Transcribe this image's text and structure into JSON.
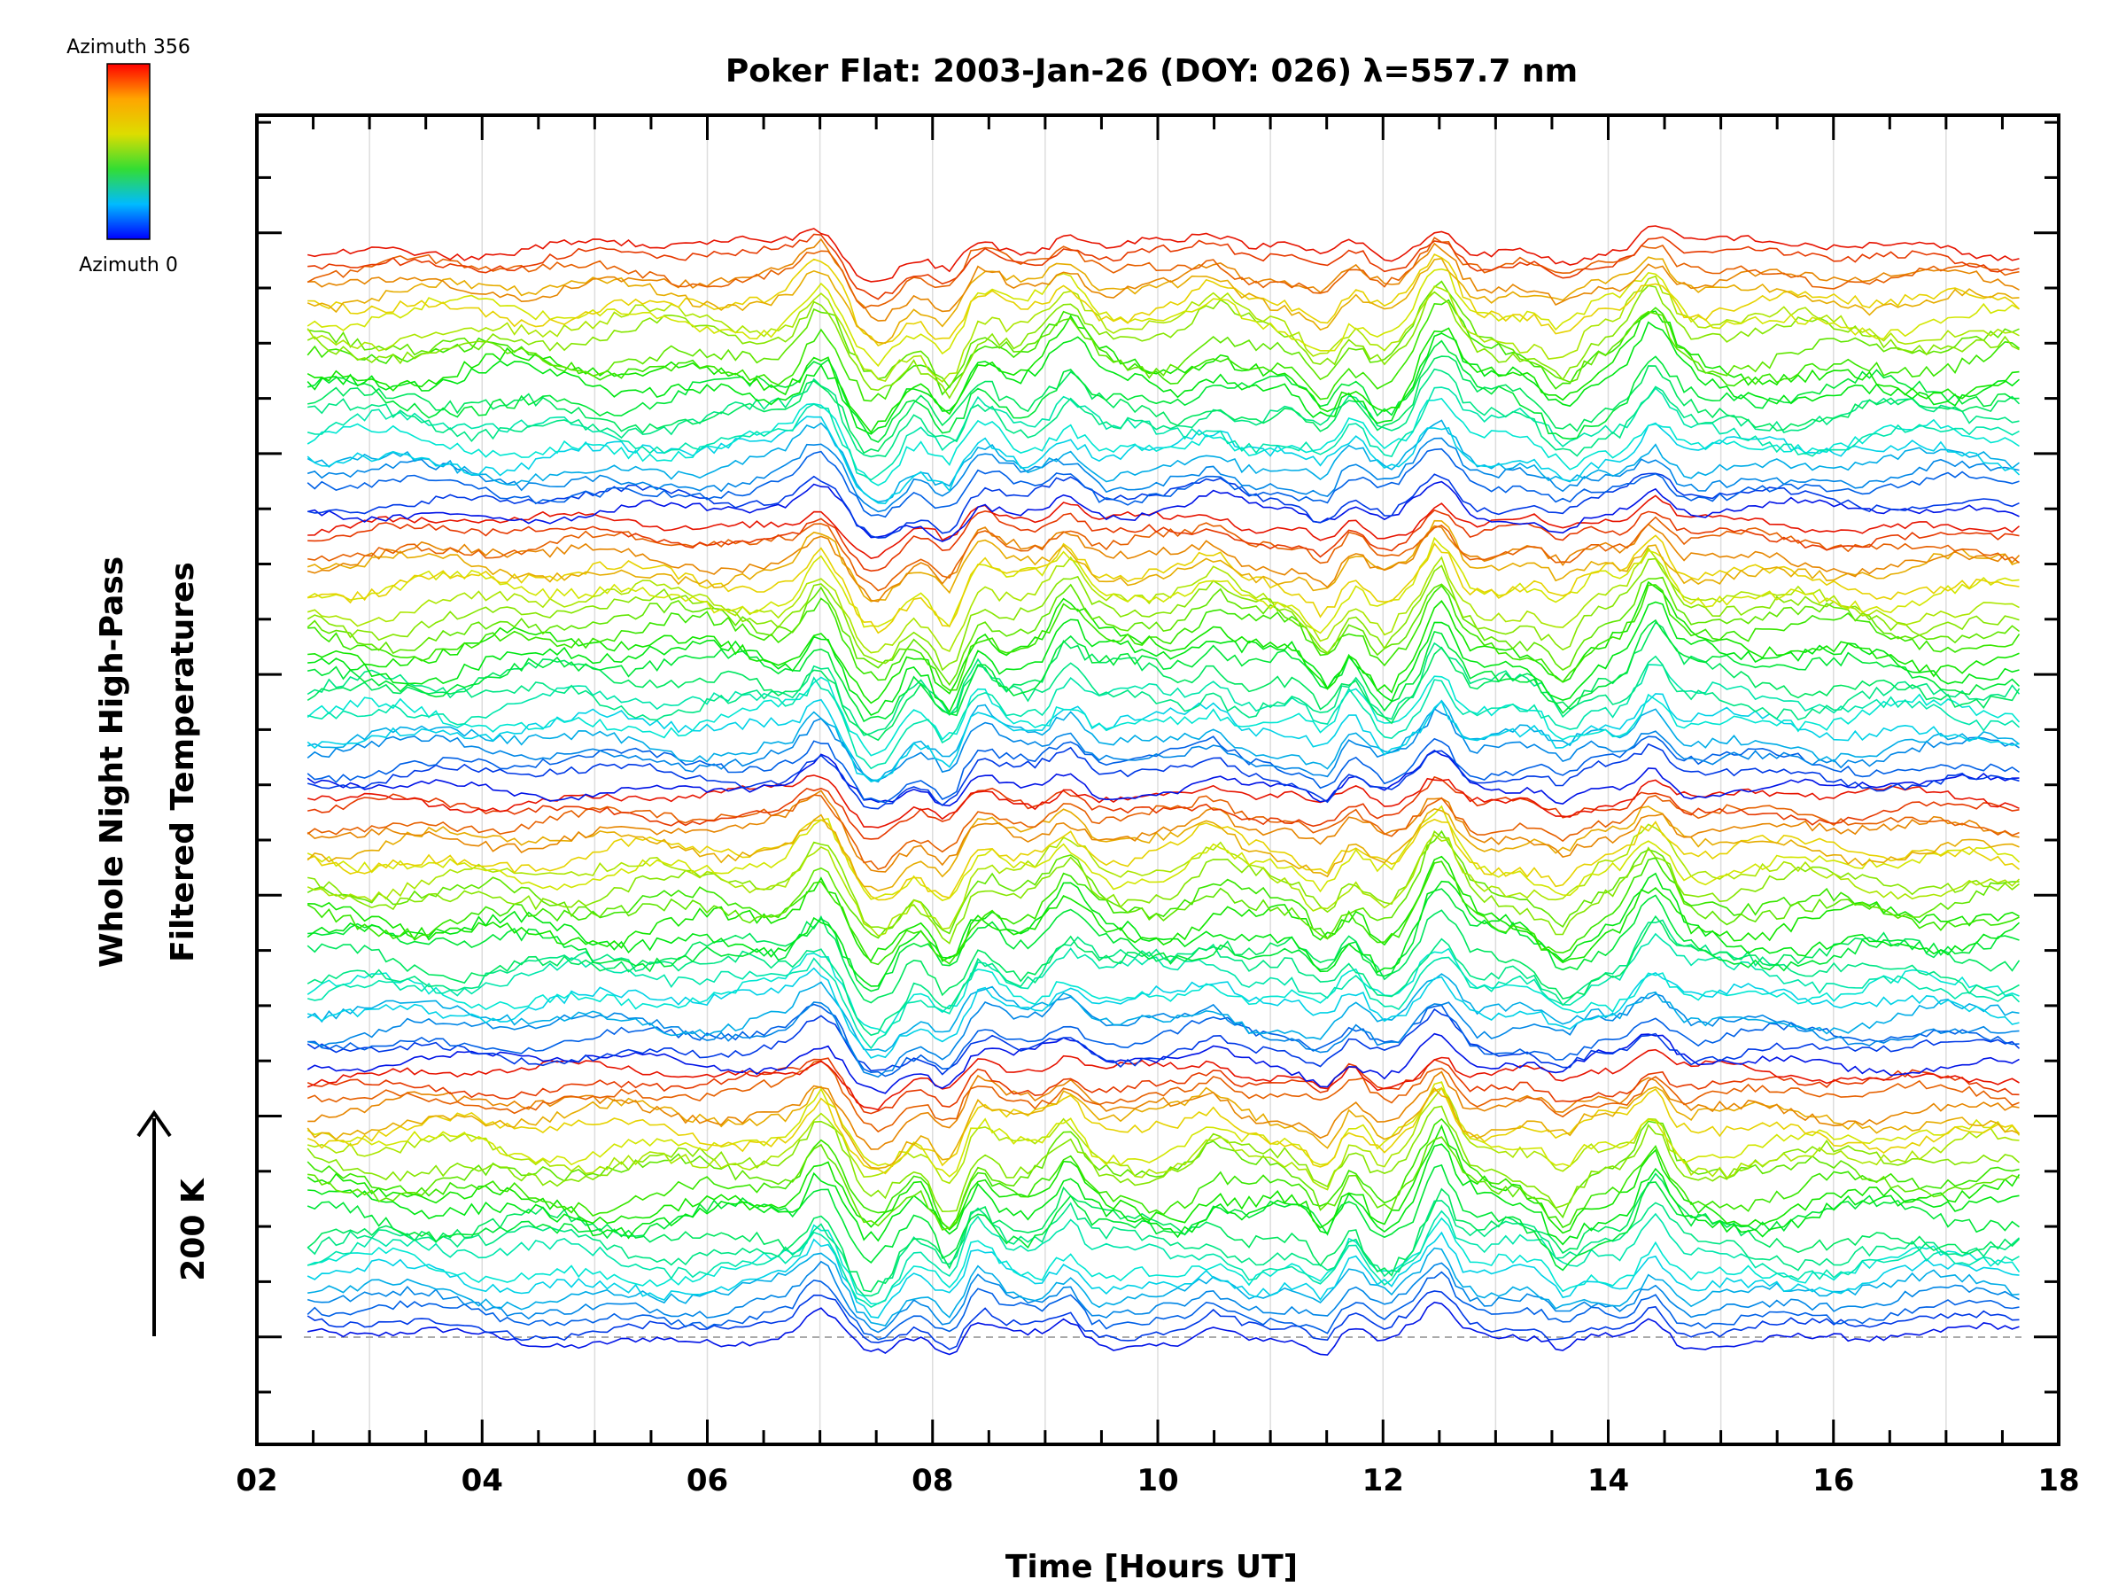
{
  "chart_data": {
    "type": "line",
    "title": "Poker Flat: 2003-Jan-26 (DOY: 026) λ=557.7 nm",
    "xlabel": "Time [Hours UT]",
    "ylabel_line1": "Whole Night High-Pass",
    "ylabel_line2": "Filtered Temperatures",
    "scale_bar_label": "200 K",
    "xlim": [
      2,
      18
    ],
    "x_tick_labels": [
      "02",
      "04",
      "06",
      "08",
      "10",
      "12",
      "14",
      "16",
      "18"
    ],
    "x_start": 2.45,
    "x_end": 17.65,
    "grid": "vertical lines at each hour",
    "legend": {
      "type": "colorbar",
      "placement": "top-left",
      "top_label": "Azimuth 356",
      "bottom_label": "Azimuth 0",
      "colors": [
        "#ff0000",
        "#ffa500",
        "#dddd00",
        "#33dd33",
        "#00bbff",
        "#0000ff"
      ]
    },
    "series_count": 96,
    "series_description": "Stacked high-pass filtered temperature traces, color-coded by azimuth (0-356), each vertically offset; major common peaks near 07.0, 08.1, 09.2, 12.5 and 14.4 UT",
    "common_features": [
      {
        "x": 7.0,
        "amplitude": 1.0
      },
      {
        "x": 7.4,
        "amplitude": -0.9
      },
      {
        "x": 7.6,
        "amplitude": -0.8
      },
      {
        "x": 8.15,
        "amplitude": -1.1
      },
      {
        "x": 8.4,
        "amplitude": 0.7
      },
      {
        "x": 9.2,
        "amplitude": 0.9
      },
      {
        "x": 10.5,
        "amplitude": 0.5
      },
      {
        "x": 11.5,
        "amplitude": -0.8
      },
      {
        "x": 11.7,
        "amplitude": 0.5
      },
      {
        "x": 12.0,
        "amplitude": -0.6
      },
      {
        "x": 12.5,
        "amplitude": 1.4
      },
      {
        "x": 13.6,
        "amplitude": -0.7
      },
      {
        "x": 14.4,
        "amplitude": 1.2
      }
    ]
  }
}
